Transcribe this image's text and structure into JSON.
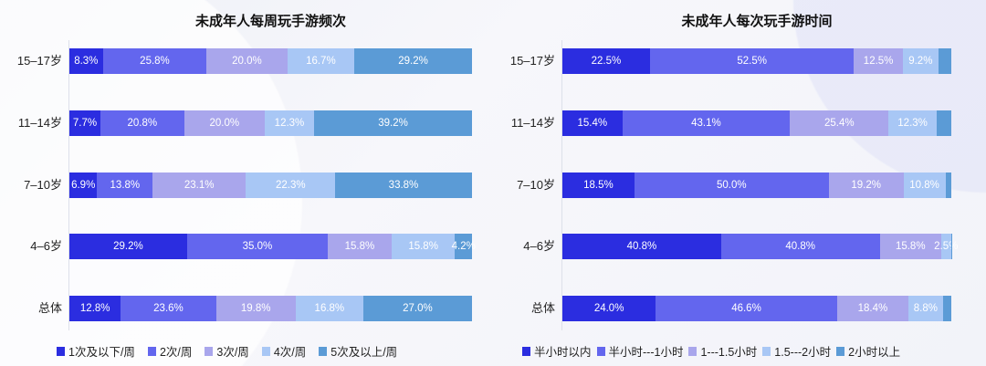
{
  "colors": [
    "#2b2de0",
    "#6366ee",
    "#a9a6ec",
    "#a8c7f5",
    "#5b9bd6"
  ],
  "chart_data": [
    {
      "type": "bar",
      "orientation": "horizontal-stacked-100",
      "title": "未成年人每周玩手游频次",
      "categories": [
        "15–17岁",
        "11–14岁",
        "7–10岁",
        "4–6岁",
        "总体"
      ],
      "series": [
        {
          "name": "1次及以下/周",
          "values": [
            8.3,
            7.7,
            6.9,
            29.2,
            12.8
          ],
          "labels": [
            "8.3%",
            "7.7%",
            "6.9%",
            "29.2%",
            "12.8%"
          ]
        },
        {
          "name": "2次/周",
          "values": [
            25.8,
            20.8,
            13.8,
            35.0,
            23.6
          ],
          "labels": [
            "25.8%",
            "20.8%",
            "13.8%",
            "35.0%",
            "23.6%"
          ]
        },
        {
          "name": "3次/周",
          "values": [
            20.0,
            20.0,
            23.1,
            15.8,
            19.8
          ],
          "labels": [
            "20.0%",
            "20.0%",
            "23.1%",
            "15.8%",
            "19.8%"
          ]
        },
        {
          "name": "4次/周",
          "values": [
            16.7,
            12.3,
            22.3,
            15.8,
            16.8
          ],
          "labels": [
            "16.7%",
            "12.3%",
            "22.3%",
            "15.8%",
            "16.8%"
          ]
        },
        {
          "name": "5次及以上/周",
          "values": [
            29.2,
            39.2,
            33.8,
            4.2,
            27.0
          ],
          "labels": [
            "29.2%",
            "39.2%",
            "33.8%",
            "4.2%",
            "27.0%"
          ]
        }
      ],
      "xlim": [
        0,
        100
      ],
      "legend": "bottom"
    },
    {
      "type": "bar",
      "orientation": "horizontal-stacked-100",
      "title": "未成年人每次玩手游时间",
      "categories": [
        "15–17岁",
        "11–14岁",
        "7–10岁",
        "4–6岁",
        "总体"
      ],
      "series": [
        {
          "name": "半小时以内",
          "values": [
            22.5,
            15.4,
            18.5,
            40.8,
            24.0
          ],
          "labels": [
            "22.5%",
            "15.4%",
            "18.5%",
            "40.8%",
            "24.0%"
          ]
        },
        {
          "name": "半小时---1小时",
          "values": [
            52.5,
            43.1,
            50.0,
            40.8,
            46.6
          ],
          "labels": [
            "52.5%",
            "43.1%",
            "50.0%",
            "40.8%",
            "46.6%"
          ]
        },
        {
          "name": "1---1.5小时",
          "values": [
            12.5,
            25.4,
            19.2,
            15.8,
            18.4
          ],
          "labels": [
            "12.5%",
            "25.4%",
            "19.2%",
            "15.8%",
            "18.4%"
          ]
        },
        {
          "name": "1.5---2小时",
          "values": [
            9.2,
            12.3,
            10.8,
            2.5,
            8.8
          ],
          "labels": [
            "9.2%",
            "12.3%",
            "10.8%",
            "2.5%",
            "8.8%"
          ]
        },
        {
          "name": "2小时以上",
          "values": [
            3.3,
            3.8,
            1.5,
            0.1,
            2.2
          ],
          "labels": [
            "",
            "",
            "",
            "",
            ""
          ]
        }
      ],
      "xlim": [
        0,
        100
      ],
      "legend": "bottom"
    }
  ]
}
